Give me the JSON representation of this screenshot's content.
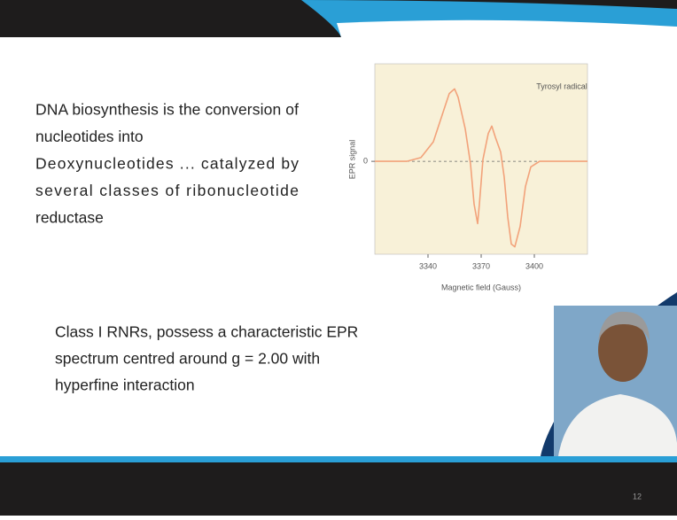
{
  "slide": {
    "paragraph_1": [
      "DNA biosynthesis is the conversion of",
      "nucleotides into",
      "Deoxynucleotides ... catalyzed by",
      "several classes of ribonucleotide",
      "reductase"
    ],
    "paragraph_2": [
      "Class I RNRs, possess a characteristic EPR",
      "spectrum centred around g = 2.00 with",
      "hyperfine interaction"
    ],
    "page_number": "12"
  },
  "chart_data": {
    "type": "line",
    "annotation": "Tyrosyl radical",
    "x_label": "Magnetic field (Gauss)",
    "y_label": "EPR signal",
    "x": [
      3310,
      3328,
      3336,
      3343,
      3348,
      3352,
      3355,
      3357,
      3361,
      3364,
      3366,
      3368,
      3369,
      3371,
      3374,
      3376,
      3378,
      3381,
      3383,
      3385,
      3387,
      3389,
      3392,
      3395,
      3398,
      3403,
      3430
    ],
    "values": [
      0,
      0,
      0.04,
      0.21,
      0.5,
      0.73,
      0.78,
      0.69,
      0.35,
      -0.03,
      -0.46,
      -0.67,
      -0.46,
      0.02,
      0.3,
      0.38,
      0.26,
      0.1,
      -0.17,
      -0.6,
      -0.89,
      -0.92,
      -0.7,
      -0.27,
      -0.06,
      0,
      0
    ],
    "color": "#f2a27a",
    "xlim": [
      3310,
      3430
    ],
    "ylim": [
      -1,
      1.05
    ],
    "xticks": [
      3340,
      3370,
      3400
    ],
    "yticks": [
      0
    ]
  }
}
